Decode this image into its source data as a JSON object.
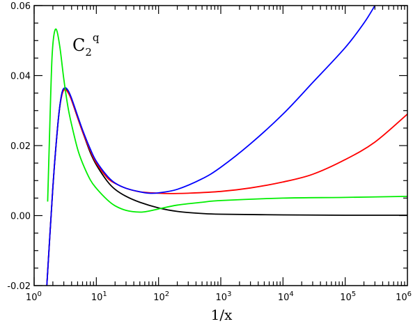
{
  "chart_data": {
    "type": "line",
    "title": "",
    "xlabel": "1/x",
    "ylabel": "",
    "x_scale": "log",
    "xlim": [
      1,
      1000000
    ],
    "ylim": [
      -0.02,
      0.06
    ],
    "grid": false,
    "legend": "none",
    "annotation": {
      "base": "C",
      "sub": "2",
      "sup": "q"
    },
    "x_ticks": [
      {
        "base": "10",
        "exp": "0"
      },
      {
        "base": "10",
        "exp": "1"
      },
      {
        "base": "10",
        "exp": "2"
      },
      {
        "base": "10",
        "exp": "3"
      },
      {
        "base": "10",
        "exp": "4"
      },
      {
        "base": "10",
        "exp": "5"
      },
      {
        "base": "10",
        "exp": "6"
      }
    ],
    "y_ticks": [
      "-0.02",
      "0.00",
      "0.02",
      "0.04",
      "0.06"
    ],
    "series": [
      {
        "color": "#000000",
        "points": [
          [
            1.6,
            -0.02
          ],
          [
            1.8,
            -0.005
          ],
          [
            2.0,
            0.008
          ],
          [
            2.2,
            0.018
          ],
          [
            2.5,
            0.029
          ],
          [
            2.8,
            0.035
          ],
          [
            3.1,
            0.0362
          ],
          [
            3.5,
            0.0355
          ],
          [
            4,
            0.033
          ],
          [
            5,
            0.028
          ],
          [
            6,
            0.024
          ],
          [
            8,
            0.018
          ],
          [
            10,
            0.0145
          ],
          [
            15,
            0.0098
          ],
          [
            20,
            0.0075
          ],
          [
            30,
            0.0055
          ],
          [
            50,
            0.0038
          ],
          [
            100,
            0.0022
          ],
          [
            200,
            0.0012
          ],
          [
            500,
            0.0006
          ],
          [
            1000,
            0.0004
          ],
          [
            10000,
            0.0002
          ],
          [
            100000,
            0.0001
          ],
          [
            1000000,
            0.0001
          ]
        ]
      },
      {
        "color": "#ff0000",
        "points": [
          [
            1.6,
            -0.02
          ],
          [
            1.8,
            -0.005
          ],
          [
            2.0,
            0.008
          ],
          [
            2.2,
            0.018
          ],
          [
            2.5,
            0.029
          ],
          [
            2.8,
            0.0345
          ],
          [
            3.1,
            0.036
          ],
          [
            3.5,
            0.0352
          ],
          [
            4,
            0.033
          ],
          [
            5,
            0.028
          ],
          [
            6,
            0.024
          ],
          [
            8,
            0.0185
          ],
          [
            10,
            0.015
          ],
          [
            15,
            0.0108
          ],
          [
            20,
            0.0092
          ],
          [
            30,
            0.0078
          ],
          [
            50,
            0.0068
          ],
          [
            100,
            0.0064
          ],
          [
            150,
            0.0063
          ],
          [
            300,
            0.0064
          ],
          [
            1000,
            0.0069
          ],
          [
            3000,
            0.0079
          ],
          [
            10000,
            0.0096
          ],
          [
            30000,
            0.0118
          ],
          [
            100000,
            0.016
          ],
          [
            300000,
            0.021
          ],
          [
            1000000,
            0.029
          ]
        ]
      },
      {
        "color": "#0000ff",
        "points": [
          [
            1.6,
            -0.02
          ],
          [
            1.8,
            -0.005
          ],
          [
            2.0,
            0.008
          ],
          [
            2.2,
            0.018
          ],
          [
            2.5,
            0.029
          ],
          [
            2.8,
            0.035
          ],
          [
            3.1,
            0.0365
          ],
          [
            3.5,
            0.0358
          ],
          [
            4,
            0.0335
          ],
          [
            5,
            0.0285
          ],
          [
            6,
            0.0245
          ],
          [
            8,
            0.019
          ],
          [
            10,
            0.0155
          ],
          [
            15,
            0.0113
          ],
          [
            20,
            0.0093
          ],
          [
            30,
            0.0078
          ],
          [
            50,
            0.0068
          ],
          [
            70,
            0.0064
          ],
          [
            100,
            0.0065
          ],
          [
            200,
            0.0075
          ],
          [
            500,
            0.0105
          ],
          [
            1000,
            0.0138
          ],
          [
            3000,
            0.0205
          ],
          [
            10000,
            0.029
          ],
          [
            30000,
            0.038
          ],
          [
            100000,
            0.048
          ],
          [
            200000,
            0.055
          ],
          [
            300000,
            0.06
          ]
        ]
      },
      {
        "color": "#00ee00",
        "points": [
          [
            1.65,
            0.004
          ],
          [
            1.75,
            0.02
          ],
          [
            1.85,
            0.035
          ],
          [
            1.95,
            0.046
          ],
          [
            2.1,
            0.052
          ],
          [
            2.3,
            0.053
          ],
          [
            2.6,
            0.048
          ],
          [
            3,
            0.039
          ],
          [
            3.5,
            0.031
          ],
          [
            4,
            0.026
          ],
          [
            5,
            0.019
          ],
          [
            6,
            0.015
          ],
          [
            8,
            0.0102
          ],
          [
            10,
            0.0078
          ],
          [
            15,
            0.0045
          ],
          [
            20,
            0.0028
          ],
          [
            30,
            0.0015
          ],
          [
            50,
            0.001
          ],
          [
            70,
            0.0013
          ],
          [
            100,
            0.0019
          ],
          [
            200,
            0.003
          ],
          [
            500,
            0.0038
          ],
          [
            1000,
            0.0043
          ],
          [
            10000,
            0.005
          ],
          [
            100000,
            0.0052
          ],
          [
            1000000,
            0.0055
          ]
        ]
      }
    ]
  }
}
